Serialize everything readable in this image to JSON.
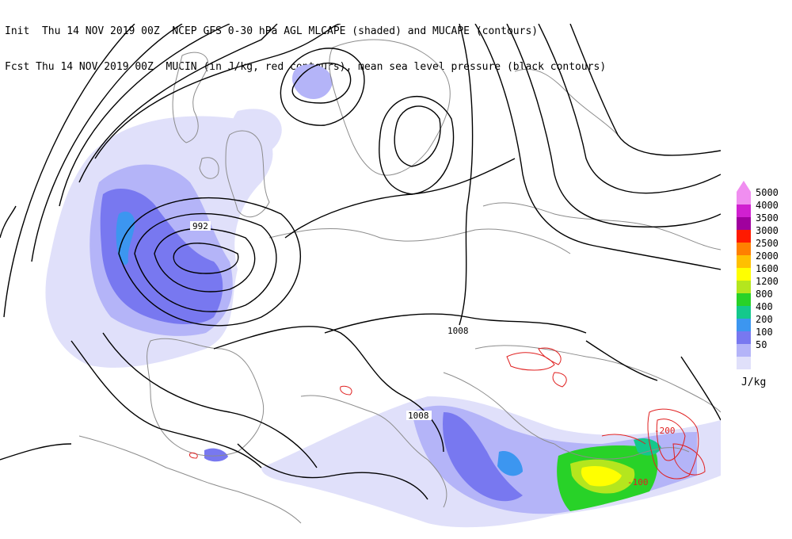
{
  "header": {
    "line1": "Init  Thu 14 NOV 2019 00Z  NCEP GFS 0-30 hPa AGL MLCAPE (shaded) and MUCAPE (contours)",
    "line2": "Fcst Thu 14 NOV 2019 00Z  MUCIN (in J/kg, red contours), mean sea level pressure (black contours)"
  },
  "contour_labels": {
    "low": "992",
    "mid": "1008",
    "south": "1008",
    "cin_a": "-200",
    "cin_b": "-100"
  },
  "legend": {
    "unit": "J/kg",
    "items": [
      {
        "label": "5000",
        "color": "#f08ef0"
      },
      {
        "label": "4000",
        "color": "#d020d0"
      },
      {
        "label": "3500",
        "color": "#a0009e"
      },
      {
        "label": "3000",
        "color": "#ff1a00"
      },
      {
        "label": "2500",
        "color": "#ff8000"
      },
      {
        "label": "2000",
        "color": "#ffc000"
      },
      {
        "label": "1600",
        "color": "#ffff00"
      },
      {
        "label": "1200",
        "color": "#b4e61e"
      },
      {
        "label": "800",
        "color": "#28d228"
      },
      {
        "label": "400",
        "color": "#14c88c"
      },
      {
        "label": "200",
        "color": "#3c96f0"
      },
      {
        "label": "100",
        "color": "#7878f0"
      },
      {
        "label": "50",
        "color": "#b4b4f8"
      },
      {
        "label": "",
        "color": "#e0e0fa"
      }
    ]
  }
}
